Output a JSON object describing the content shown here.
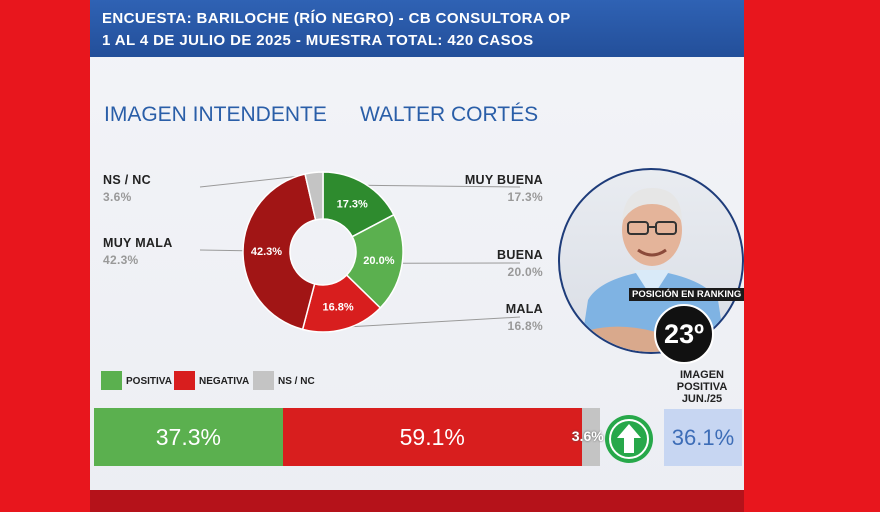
{
  "header": {
    "line1": "ENCUESTA: BARILOCHE (RÍO NEGRO) - CB CONSULTORA OP",
    "line2": "1 AL 4 DE JULIO DE 2025 - MUESTRA TOTAL: 420 CASOS"
  },
  "titles": {
    "left": "IMAGEN INTENDENTE",
    "right": "WALTER CORTÉS"
  },
  "colors": {
    "muy_buena": "#2e8b2e",
    "buena": "#5bb04f",
    "mala": "#d81e1e",
    "muy_mala": "#a11515",
    "ns_nc": "#c4c4c4",
    "header": "#2f62b4"
  },
  "chart_data": {
    "type": "pie",
    "donut": true,
    "slices": [
      {
        "label": "MUY BUENA",
        "value": 17.3,
        "display": "17.3%",
        "color": "#2e8b2e"
      },
      {
        "label": "BUENA",
        "value": 20.0,
        "display": "20.0%",
        "color": "#5bb04f"
      },
      {
        "label": "MALA",
        "value": 16.8,
        "display": "16.8%",
        "color": "#d81e1e"
      },
      {
        "label": "MUY MALA",
        "value": 42.3,
        "display": "42.3%",
        "color": "#a11515"
      },
      {
        "label": "NS / NC",
        "value": 3.6,
        "display": "3.6%",
        "color": "#c4c4c4"
      }
    ]
  },
  "legend": {
    "positiva": "POSITIVA",
    "negativa": "NEGATIVA",
    "ns_nc": "NS / NC"
  },
  "summary_bar": {
    "positiva": {
      "value": 37.3,
      "display": "37.3%",
      "color": "#5bb04f"
    },
    "negativa": {
      "value": 59.1,
      "display": "59.1%",
      "color": "#d81e1e"
    },
    "ns_nc": {
      "value": 3.6,
      "display": "3.6%",
      "color": "#c4c4c4"
    }
  },
  "ranking": {
    "label": "POSICIÓN EN RANKING",
    "value": "23º"
  },
  "trend_icon": "arrow-up-icon",
  "previous": {
    "label_lines": [
      "IMAGEN",
      "POSITIVA",
      "JUN./25"
    ],
    "value": "36.1%"
  }
}
